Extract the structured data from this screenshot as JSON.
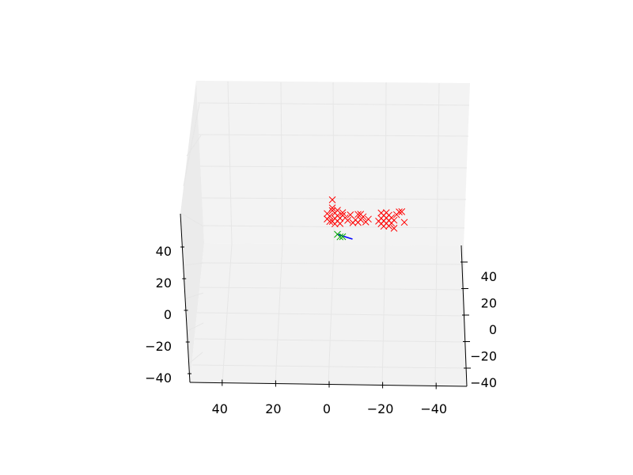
{
  "chart_data": {
    "type": "scatter",
    "projection": "3d",
    "title": "",
    "xlabel": "",
    "ylabel": "",
    "zlabel": "",
    "grid": true,
    "axes": {
      "bottom": {
        "range": [
          -50,
          50
        ],
        "ticks": [
          40,
          20,
          0,
          -20,
          -40
        ],
        "tick_labels": [
          "40",
          "20",
          "0",
          "−20",
          "−40"
        ]
      },
      "left": {
        "range": [
          -50,
          50
        ],
        "ticks": [
          40,
          20,
          0,
          -20,
          -40
        ],
        "tick_labels": [
          "40",
          "20",
          "0",
          "−20",
          "−40"
        ]
      },
      "right": {
        "range": [
          -50,
          50
        ],
        "ticks": [
          40,
          20,
          0,
          -20,
          -40
        ],
        "tick_labels": [
          "40",
          "20",
          "0",
          "−20",
          "−40"
        ]
      }
    },
    "series": [
      {
        "marker": "x",
        "color": "#ff0000",
        "points": [
          [
            0,
            5
          ],
          [
            -1,
            4
          ],
          [
            -2,
            3
          ],
          [
            -1,
            2
          ],
          [
            1,
            3
          ],
          [
            2,
            4
          ],
          [
            0,
            1
          ],
          [
            -3,
            2
          ],
          [
            1,
            1
          ],
          [
            -2,
            5
          ],
          [
            0,
            6
          ],
          [
            2,
            2
          ],
          [
            -3,
            0
          ],
          [
            -5,
            2
          ],
          [
            -7,
            3
          ],
          [
            -4,
            4
          ],
          [
            -6,
            1
          ],
          [
            -8,
            0
          ],
          [
            -2,
            1
          ],
          [
            -1,
            0
          ],
          [
            0,
            9
          ],
          [
            -4,
            3
          ],
          [
            -9,
            1
          ],
          [
            -10,
            0
          ],
          [
            -11,
            1
          ],
          [
            -12,
            2
          ],
          [
            -13,
            0
          ],
          [
            -14,
            1
          ],
          [
            -11,
            3
          ],
          [
            -10,
            3
          ],
          [
            -19,
            1
          ],
          [
            -20,
            0
          ],
          [
            -21,
            1
          ],
          [
            -22,
            0
          ],
          [
            -23,
            1
          ],
          [
            -20,
            2
          ],
          [
            -21,
            -1
          ],
          [
            -19,
            -1
          ],
          [
            -22,
            2
          ],
          [
            -24,
            0
          ],
          [
            -20,
            -2
          ],
          [
            -21,
            3
          ],
          [
            -23,
            -1
          ],
          [
            -18,
            0
          ],
          [
            -22,
            -2
          ],
          [
            -25,
            2
          ],
          [
            -26,
            3
          ],
          [
            -27,
            3
          ],
          [
            -19,
            3
          ],
          [
            -24,
            -3
          ],
          [
            -28,
            -1
          ]
        ]
      },
      {
        "marker": "line",
        "color": "#0000ff",
        "points": [
          [
            -2,
            -1
          ],
          [
            -6,
            -3
          ]
        ]
      },
      {
        "marker": "x",
        "color": "#00aa00",
        "points": [
          [
            -2,
            -1
          ],
          [
            -3,
            -2
          ],
          [
            -4,
            -2
          ]
        ]
      }
    ]
  }
}
